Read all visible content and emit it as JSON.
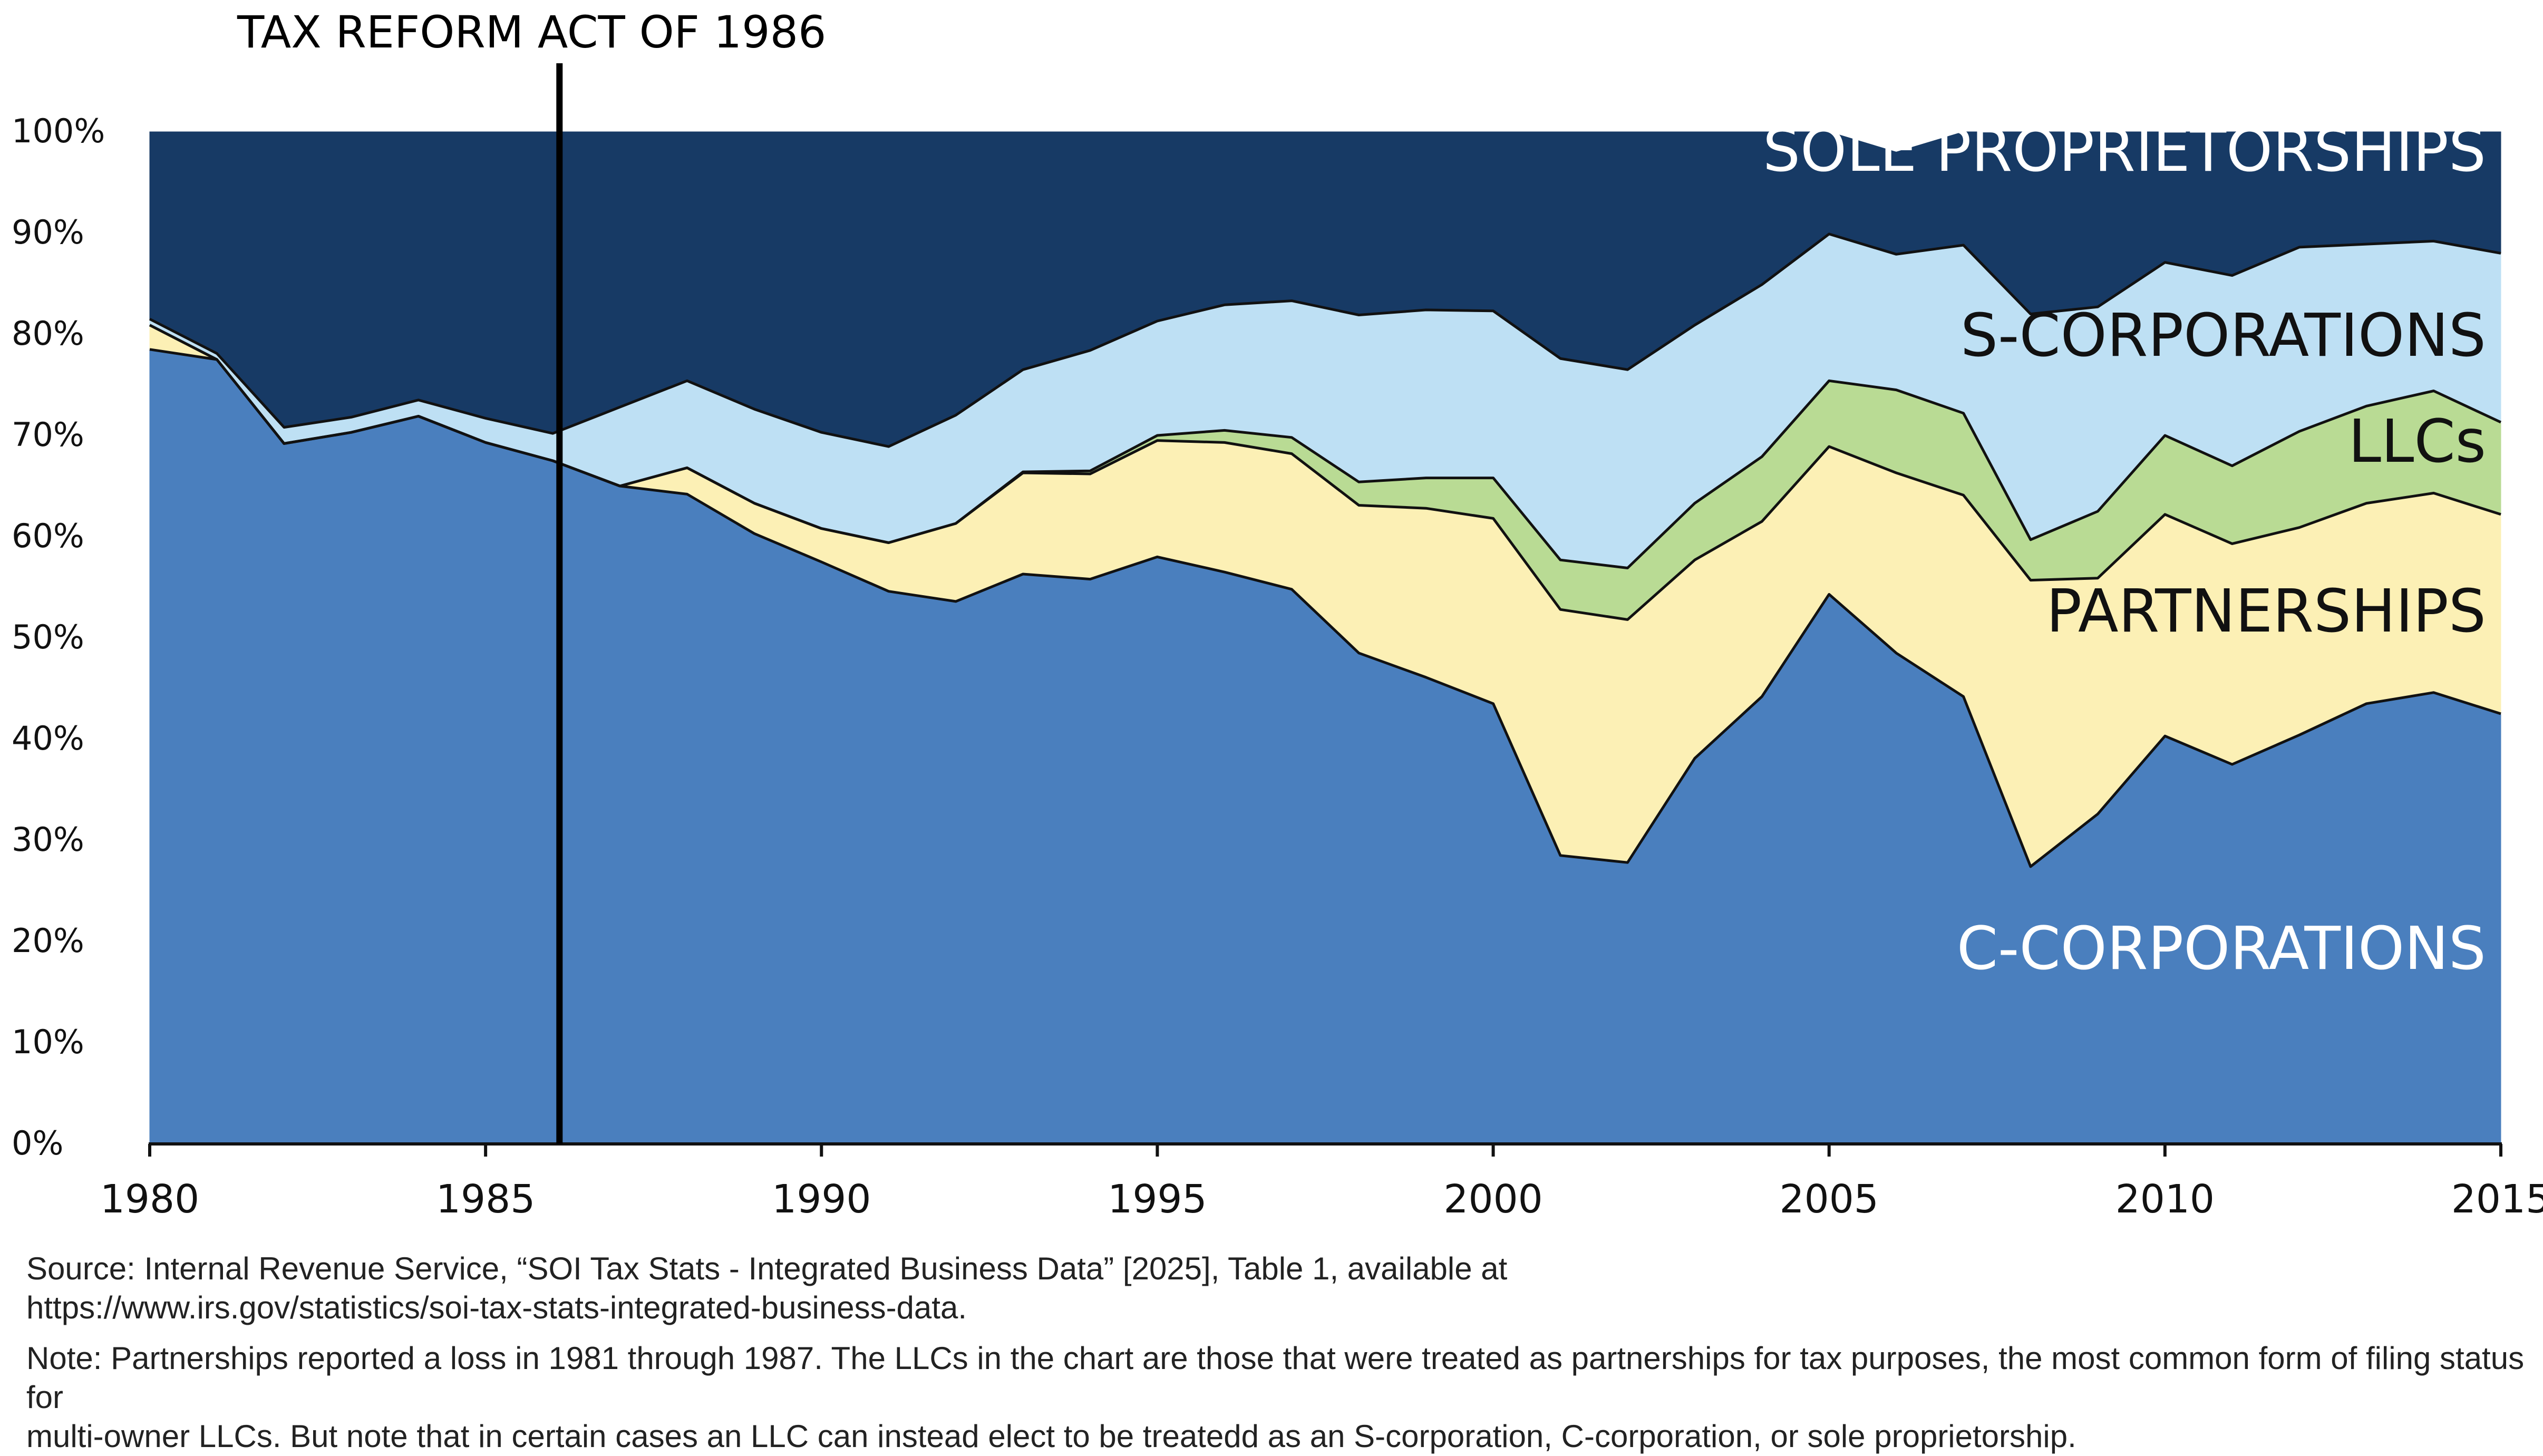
{
  "chart_data": {
    "type": "area",
    "stacked": true,
    "normalized": true,
    "annotation": "TAX REFORM ACT OF 1986",
    "annotation_x": 1986.1,
    "x": [
      1980,
      1981,
      1982,
      1983,
      1984,
      1985,
      1986,
      1987,
      1988,
      1989,
      1990,
      1991,
      1992,
      1993,
      1994,
      1995,
      1996,
      1997,
      1998,
      1999,
      2000,
      2001,
      2002,
      2003,
      2004,
      2005,
      2006,
      2007,
      2008,
      2009,
      2010,
      2011,
      2012,
      2013,
      2014,
      2015
    ],
    "xlim": [
      1980,
      2015
    ],
    "x_ticks": [
      "1980",
      "1985",
      "1990",
      "1995",
      "2000",
      "2005",
      "2010",
      "2015"
    ],
    "ylim": [
      0,
      100
    ],
    "y_ticks": [
      "0%",
      "10%",
      "20%",
      "30%",
      "40%",
      "50%",
      "60%",
      "70%",
      "80%",
      "90%",
      "100%"
    ],
    "series": [
      {
        "name": "C-CORPORATIONS",
        "label": "C-CORPORATIONS",
        "color": "#4a7fbe",
        "values": [
          78.5,
          77.5,
          69.2,
          70.3,
          71.9,
          69.3,
          67.5,
          65.0,
          64.2,
          60.3,
          57.5,
          54.6,
          53.6,
          56.3,
          55.8,
          58.0,
          56.5,
          54.8,
          48.5,
          46.1,
          43.5,
          28.5,
          27.8,
          38.1,
          44.2,
          54.3,
          48.5,
          44.2,
          27.4,
          32.6,
          40.3,
          37.5,
          40.4,
          43.5,
          44.6,
          42.5
        ]
      },
      {
        "name": "PARTNERSHIPS",
        "label": "PARTNERSHIPS",
        "color": "#fcf0b5",
        "values": [
          2.4,
          0.0,
          0.0,
          0.0,
          0.0,
          0.0,
          0.0,
          0.0,
          2.6,
          3.0,
          3.3,
          4.8,
          7.7,
          10.0,
          10.4,
          11.5,
          12.8,
          13.4,
          14.6,
          16.7,
          18.3,
          24.3,
          24.0,
          19.6,
          17.3,
          14.6,
          17.8,
          19.9,
          28.3,
          23.3,
          21.9,
          21.8,
          20.5,
          19.8,
          19.7,
          19.7
        ]
      },
      {
        "name": "LLCs",
        "label": "LLCs",
        "color": "#b9db94",
        "values": [
          0.0,
          0.0,
          0.0,
          0.0,
          0.0,
          0.0,
          0.0,
          0.0,
          0.0,
          0.0,
          0.0,
          0.0,
          0.0,
          0.1,
          0.3,
          0.5,
          1.2,
          1.6,
          2.3,
          3.0,
          4.0,
          4.9,
          5.1,
          5.6,
          6.4,
          6.5,
          8.2,
          8.1,
          4.0,
          6.6,
          7.8,
          7.7,
          9.5,
          9.6,
          10.1,
          9.1
        ]
      },
      {
        "name": "S-CORPORATIONS",
        "label": "S-CORPORATIONS",
        "color": "#bee0f4",
        "values": [
          0.6,
          0.6,
          1.6,
          1.5,
          1.6,
          2.4,
          2.7,
          7.8,
          8.6,
          9.3,
          9.5,
          9.5,
          10.7,
          10.1,
          11.9,
          11.3,
          12.4,
          13.5,
          16.5,
          16.6,
          16.5,
          19.9,
          19.6,
          17.6,
          17.0,
          14.5,
          13.4,
          16.6,
          22.3,
          20.2,
          17.1,
          18.8,
          18.2,
          16.0,
          14.8,
          16.7
        ]
      },
      {
        "name": "SOLE PROPRIETORSHIPS",
        "label": "SOLE PROPRIETORSHIPS",
        "color": "#173a65",
        "values": [
          18.5,
          21.9,
          29.2,
          28.2,
          26.5,
          28.3,
          29.8,
          27.2,
          24.6,
          27.4,
          29.7,
          31.1,
          28.0,
          23.5,
          21.6,
          18.7,
          17.1,
          16.7,
          18.1,
          17.6,
          17.7,
          22.4,
          23.5,
          19.1,
          15.1,
          10.1,
          10.1,
          11.2,
          18.0,
          17.3,
          12.9,
          14.2,
          11.4,
          11.1,
          10.8,
          12.0
        ]
      }
    ]
  },
  "notes": {
    "source_line1": "Source: Internal Revenue Service, “SOI Tax Stats - Integrated Business Data” [2025], Table 1, available at",
    "source_line2": "https://www.irs.gov/statistics/soi-tax-stats-integrated-business-data.",
    "note_line1": "Note: Partnerships reported a loss in 1981 through 1987. The LLCs in the chart are those that were treated as partnerships for tax purposes, the most common form of filing status for",
    "note_line2": "multi-owner LLCs. But note that in certain cases an LLC can instead elect to be treatedd as an S-corporation, C-corporation, or sole proprietorship."
  }
}
